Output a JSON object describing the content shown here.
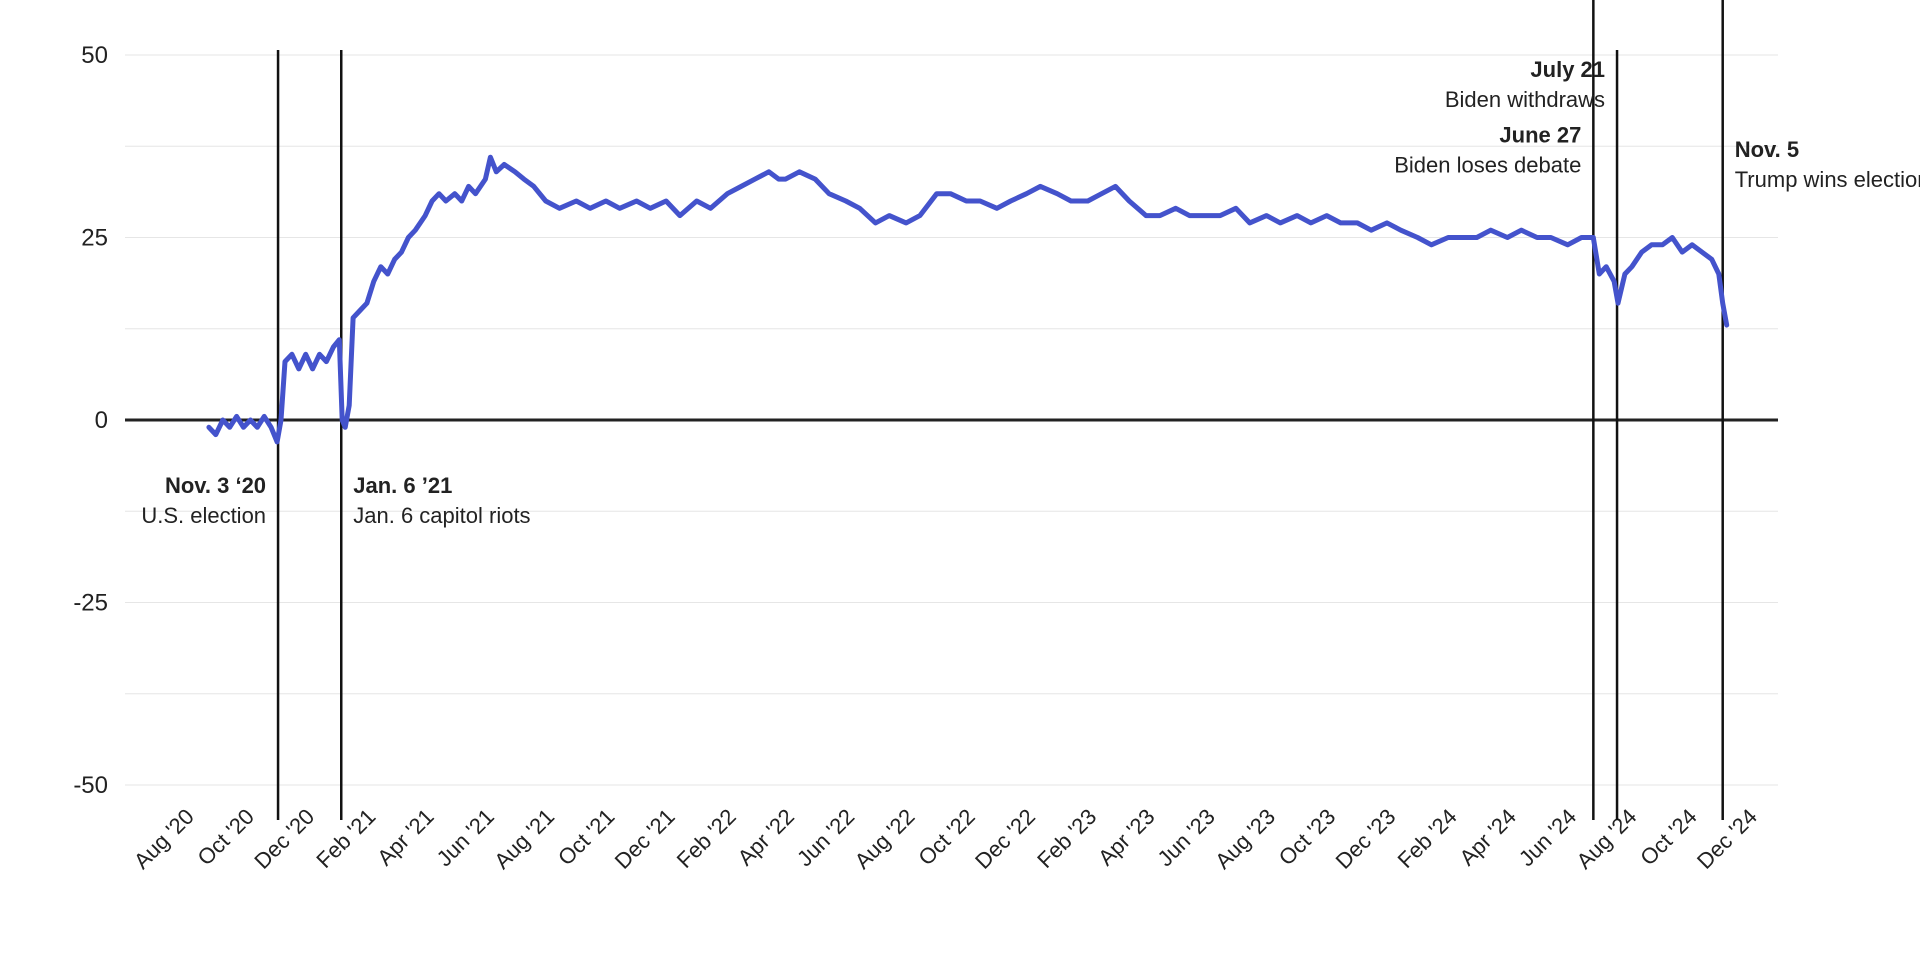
{
  "chart_data": {
    "type": "line",
    "title": "",
    "xlabel": "",
    "ylabel": "",
    "x_range": [
      "2020-06-01",
      "2024-12-31"
    ],
    "ylim": [
      -50,
      50
    ],
    "y_ticks": [
      50,
      25,
      0,
      -25,
      -50
    ],
    "y_tick_labels": [
      "50",
      "25",
      "0",
      "-25",
      "-50"
    ],
    "x_ticks": [
      {
        "date": "2020-08-01",
        "label": "Aug '20"
      },
      {
        "date": "2020-10-01",
        "label": "Oct '20"
      },
      {
        "date": "2020-12-01",
        "label": "Dec '20"
      },
      {
        "date": "2021-02-01",
        "label": "Feb '21"
      },
      {
        "date": "2021-04-01",
        "label": "Apr '21"
      },
      {
        "date": "2021-06-01",
        "label": "Jun '21"
      },
      {
        "date": "2021-08-01",
        "label": "Aug '21"
      },
      {
        "date": "2021-10-01",
        "label": "Oct '21"
      },
      {
        "date": "2021-12-01",
        "label": "Dec '21"
      },
      {
        "date": "2022-02-01",
        "label": "Feb '22"
      },
      {
        "date": "2022-04-01",
        "label": "Apr '22"
      },
      {
        "date": "2022-06-01",
        "label": "Jun '22"
      },
      {
        "date": "2022-08-01",
        "label": "Aug '22"
      },
      {
        "date": "2022-10-01",
        "label": "Oct '22"
      },
      {
        "date": "2022-12-01",
        "label": "Dec '22"
      },
      {
        "date": "2023-02-01",
        "label": "Feb '23"
      },
      {
        "date": "2023-04-01",
        "label": "Apr '23"
      },
      {
        "date": "2023-06-01",
        "label": "Jun '23"
      },
      {
        "date": "2023-08-01",
        "label": "Aug '23"
      },
      {
        "date": "2023-10-01",
        "label": "Oct '23"
      },
      {
        "date": "2023-12-01",
        "label": "Dec '23"
      },
      {
        "date": "2024-02-01",
        "label": "Feb '24"
      },
      {
        "date": "2024-04-01",
        "label": "Apr '24"
      },
      {
        "date": "2024-06-01",
        "label": "Jun '24"
      },
      {
        "date": "2024-08-01",
        "label": "Aug '24"
      },
      {
        "date": "2024-10-01",
        "label": "Oct '24"
      },
      {
        "date": "2024-12-01",
        "label": "Dec '24"
      }
    ],
    "grid": true,
    "series": [
      {
        "color": "#4453cc",
        "points": [
          {
            "x": "2020-08-25",
            "y": -1
          },
          {
            "x": "2020-09-01",
            "y": -2
          },
          {
            "x": "2020-09-08",
            "y": 0
          },
          {
            "x": "2020-09-15",
            "y": -1
          },
          {
            "x": "2020-09-22",
            "y": 0.5
          },
          {
            "x": "2020-09-29",
            "y": -1
          },
          {
            "x": "2020-10-06",
            "y": 0
          },
          {
            "x": "2020-10-13",
            "y": -1
          },
          {
            "x": "2020-10-20",
            "y": 0.5
          },
          {
            "x": "2020-10-27",
            "y": -1
          },
          {
            "x": "2020-11-02",
            "y": -3
          },
          {
            "x": "2020-11-06",
            "y": 0
          },
          {
            "x": "2020-11-10",
            "y": 8
          },
          {
            "x": "2020-11-17",
            "y": 9
          },
          {
            "x": "2020-11-24",
            "y": 7
          },
          {
            "x": "2020-12-01",
            "y": 9
          },
          {
            "x": "2020-12-08",
            "y": 7
          },
          {
            "x": "2020-12-15",
            "y": 9
          },
          {
            "x": "2020-12-22",
            "y": 8
          },
          {
            "x": "2020-12-29",
            "y": 10
          },
          {
            "x": "2021-01-04",
            "y": 11
          },
          {
            "x": "2021-01-07",
            "y": 0
          },
          {
            "x": "2021-01-10",
            "y": -1
          },
          {
            "x": "2021-01-14",
            "y": 2
          },
          {
            "x": "2021-01-18",
            "y": 14
          },
          {
            "x": "2021-01-25",
            "y": 15
          },
          {
            "x": "2021-02-01",
            "y": 16
          },
          {
            "x": "2021-02-08",
            "y": 19
          },
          {
            "x": "2021-02-15",
            "y": 21
          },
          {
            "x": "2021-02-22",
            "y": 20
          },
          {
            "x": "2021-03-01",
            "y": 22
          },
          {
            "x": "2021-03-08",
            "y": 23
          },
          {
            "x": "2021-03-15",
            "y": 25
          },
          {
            "x": "2021-03-22",
            "y": 26
          },
          {
            "x": "2021-04-01",
            "y": 28
          },
          {
            "x": "2021-04-08",
            "y": 30
          },
          {
            "x": "2021-04-15",
            "y": 31
          },
          {
            "x": "2021-04-22",
            "y": 30
          },
          {
            "x": "2021-05-01",
            "y": 31
          },
          {
            "x": "2021-05-08",
            "y": 30
          },
          {
            "x": "2021-05-15",
            "y": 32
          },
          {
            "x": "2021-05-22",
            "y": 31
          },
          {
            "x": "2021-06-01",
            "y": 33
          },
          {
            "x": "2021-06-06",
            "y": 36
          },
          {
            "x": "2021-06-12",
            "y": 34
          },
          {
            "x": "2021-06-20",
            "y": 35
          },
          {
            "x": "2021-07-01",
            "y": 34
          },
          {
            "x": "2021-07-10",
            "y": 33
          },
          {
            "x": "2021-07-20",
            "y": 32
          },
          {
            "x": "2021-08-01",
            "y": 30
          },
          {
            "x": "2021-08-15",
            "y": 29
          },
          {
            "x": "2021-09-01",
            "y": 30
          },
          {
            "x": "2021-09-15",
            "y": 29
          },
          {
            "x": "2021-10-01",
            "y": 30
          },
          {
            "x": "2021-10-15",
            "y": 29
          },
          {
            "x": "2021-11-01",
            "y": 30
          },
          {
            "x": "2021-11-15",
            "y": 29
          },
          {
            "x": "2021-12-01",
            "y": 30
          },
          {
            "x": "2021-12-15",
            "y": 28
          },
          {
            "x": "2022-01-01",
            "y": 30
          },
          {
            "x": "2022-01-15",
            "y": 29
          },
          {
            "x": "2022-02-01",
            "y": 31
          },
          {
            "x": "2022-02-15",
            "y": 32
          },
          {
            "x": "2022-03-01",
            "y": 33
          },
          {
            "x": "2022-03-15",
            "y": 34
          },
          {
            "x": "2022-03-25",
            "y": 33
          },
          {
            "x": "2022-04-01",
            "y": 33
          },
          {
            "x": "2022-04-15",
            "y": 34
          },
          {
            "x": "2022-05-01",
            "y": 33
          },
          {
            "x": "2022-05-15",
            "y": 31
          },
          {
            "x": "2022-06-01",
            "y": 30
          },
          {
            "x": "2022-06-15",
            "y": 29
          },
          {
            "x": "2022-07-01",
            "y": 27
          },
          {
            "x": "2022-07-15",
            "y": 28
          },
          {
            "x": "2022-08-01",
            "y": 27
          },
          {
            "x": "2022-08-15",
            "y": 28
          },
          {
            "x": "2022-09-01",
            "y": 31
          },
          {
            "x": "2022-09-15",
            "y": 31
          },
          {
            "x": "2022-10-01",
            "y": 30
          },
          {
            "x": "2022-10-15",
            "y": 30
          },
          {
            "x": "2022-11-01",
            "y": 29
          },
          {
            "x": "2022-11-15",
            "y": 30
          },
          {
            "x": "2022-12-01",
            "y": 31
          },
          {
            "x": "2022-12-15",
            "y": 32
          },
          {
            "x": "2023-01-01",
            "y": 31
          },
          {
            "x": "2023-01-15",
            "y": 30
          },
          {
            "x": "2023-02-01",
            "y": 30
          },
          {
            "x": "2023-02-15",
            "y": 31
          },
          {
            "x": "2023-03-01",
            "y": 32
          },
          {
            "x": "2023-03-15",
            "y": 30
          },
          {
            "x": "2023-04-01",
            "y": 28
          },
          {
            "x": "2023-04-15",
            "y": 28
          },
          {
            "x": "2023-05-01",
            "y": 29
          },
          {
            "x": "2023-05-15",
            "y": 28
          },
          {
            "x": "2023-06-01",
            "y": 28
          },
          {
            "x": "2023-06-15",
            "y": 28
          },
          {
            "x": "2023-07-01",
            "y": 29
          },
          {
            "x": "2023-07-15",
            "y": 27
          },
          {
            "x": "2023-08-01",
            "y": 28
          },
          {
            "x": "2023-08-15",
            "y": 27
          },
          {
            "x": "2023-09-01",
            "y": 28
          },
          {
            "x": "2023-09-15",
            "y": 27
          },
          {
            "x": "2023-10-01",
            "y": 28
          },
          {
            "x": "2023-10-15",
            "y": 27
          },
          {
            "x": "2023-11-01",
            "y": 27
          },
          {
            "x": "2023-11-15",
            "y": 26
          },
          {
            "x": "2023-12-01",
            "y": 27
          },
          {
            "x": "2023-12-15",
            "y": 26
          },
          {
            "x": "2024-01-01",
            "y": 25
          },
          {
            "x": "2024-01-15",
            "y": 24
          },
          {
            "x": "2024-02-01",
            "y": 25
          },
          {
            "x": "2024-02-15",
            "y": 25
          },
          {
            "x": "2024-03-01",
            "y": 25
          },
          {
            "x": "2024-03-15",
            "y": 26
          },
          {
            "x": "2024-04-01",
            "y": 25
          },
          {
            "x": "2024-04-15",
            "y": 26
          },
          {
            "x": "2024-05-01",
            "y": 25
          },
          {
            "x": "2024-05-15",
            "y": 25
          },
          {
            "x": "2024-06-01",
            "y": 24
          },
          {
            "x": "2024-06-15",
            "y": 25
          },
          {
            "x": "2024-06-27",
            "y": 25
          },
          {
            "x": "2024-07-03",
            "y": 20
          },
          {
            "x": "2024-07-10",
            "y": 21
          },
          {
            "x": "2024-07-18",
            "y": 19
          },
          {
            "x": "2024-07-22",
            "y": 16
          },
          {
            "x": "2024-07-29",
            "y": 20
          },
          {
            "x": "2024-08-05",
            "y": 21
          },
          {
            "x": "2024-08-15",
            "y": 23
          },
          {
            "x": "2024-08-25",
            "y": 24
          },
          {
            "x": "2024-09-05",
            "y": 24
          },
          {
            "x": "2024-09-15",
            "y": 25
          },
          {
            "x": "2024-09-25",
            "y": 23
          },
          {
            "x": "2024-10-05",
            "y": 24
          },
          {
            "x": "2024-10-15",
            "y": 23
          },
          {
            "x": "2024-10-25",
            "y": 22
          },
          {
            "x": "2024-11-01",
            "y": 20
          },
          {
            "x": "2024-11-05",
            "y": 16
          },
          {
            "x": "2024-11-09",
            "y": 13
          }
        ]
      }
    ],
    "annotations": [
      {
        "date": "2020-11-03",
        "bold": "Nov. 3 ‘20",
        "text": "U.S. election",
        "align": "left-of-line",
        "y_text": -10
      },
      {
        "date": "2021-01-06",
        "bold": "Jan. 6 ’21",
        "text": "Jan. 6 capitol riots",
        "align": "right-of-line",
        "y_text": -10
      },
      {
        "date": "2024-06-27",
        "bold": "June 27",
        "text": "Biden loses debate",
        "align": "left-of-line",
        "y_text": 38
      },
      {
        "date": "2024-07-21",
        "bold": "July 21",
        "text": "Biden withdraws",
        "align": "left-of-line",
        "y_text": 47
      },
      {
        "date": "2024-11-05",
        "bold": "Nov. 5",
        "text": "Trump wins election",
        "align": "right-of-line",
        "y_text": 36
      }
    ]
  }
}
